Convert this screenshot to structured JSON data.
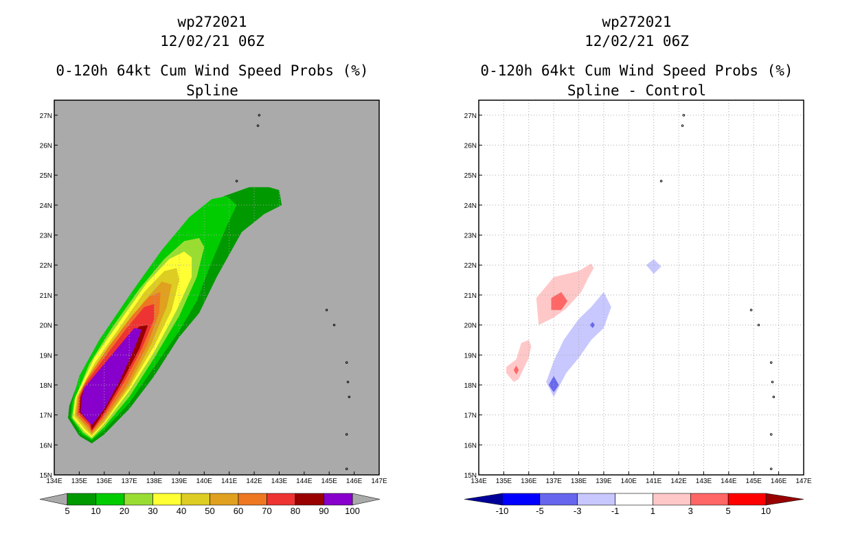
{
  "chart_data": [
    {
      "type": "contour",
      "title_lines": [
        "wp272021",
        "12/02/21 06Z",
        "0-120h 64kt Cum Wind Speed Probs (%)",
        "Spline"
      ],
      "x_ticks": [
        "134E",
        "135E",
        "136E",
        "137E",
        "138E",
        "139E",
        "140E",
        "141E",
        "142E",
        "143E",
        "144E",
        "145E",
        "146E",
        "147E"
      ],
      "y_ticks": [
        "15N",
        "16N",
        "17N",
        "18N",
        "19N",
        "20N",
        "21N",
        "22N",
        "23N",
        "24N",
        "25N",
        "26N",
        "27N"
      ],
      "xlim": [
        134,
        147
      ],
      "ylim": [
        15,
        27.5
      ],
      "background_color": "#aaaaaa",
      "grid": true,
      "legend": {
        "colors": [
          "#009900",
          "#00cc00",
          "#99dd33",
          "#ffff33",
          "#ddcc22",
          "#e0a020",
          "#ee7722",
          "#ee3333",
          "#990000",
          "#8800cc"
        ],
        "labels": [
          "5",
          "10",
          "20",
          "30",
          "40",
          "50",
          "60",
          "70",
          "80",
          "90",
          "100"
        ]
      },
      "contours": [
        {
          "level": 5,
          "color": "#009900",
          "points": [
            [
              134.55,
              16.9
            ],
            [
              135.0,
              16.3
            ],
            [
              135.5,
              16.05
            ],
            [
              136.0,
              16.35
            ],
            [
              137.0,
              17.2
            ],
            [
              138.0,
              18.3
            ],
            [
              139.0,
              19.6
            ],
            [
              139.8,
              20.4
            ],
            [
              140.5,
              21.6
            ],
            [
              141.5,
              23.1
            ],
            [
              142.4,
              23.7
            ],
            [
              143.1,
              24.0
            ],
            [
              143.0,
              24.5
            ],
            [
              142.6,
              24.6
            ],
            [
              141.8,
              24.6
            ],
            [
              140.8,
              24.3
            ],
            [
              139.8,
              23.7
            ],
            [
              138.5,
              22.5
            ],
            [
              137.2,
              21.1
            ],
            [
              135.8,
              19.4
            ],
            [
              135.0,
              18.2
            ],
            [
              134.6,
              17.3
            ]
          ]
        },
        {
          "level": 10,
          "color": "#00cc00",
          "points": [
            [
              134.65,
              16.9
            ],
            [
              135.1,
              16.35
            ],
            [
              135.5,
              16.15
            ],
            [
              136.0,
              16.5
            ],
            [
              137.0,
              17.4
            ],
            [
              138.0,
              18.6
            ],
            [
              139.0,
              19.8
            ],
            [
              139.7,
              20.8
            ],
            [
              140.2,
              21.9
            ],
            [
              140.9,
              23.3
            ],
            [
              141.3,
              24.0
            ],
            [
              140.9,
              24.3
            ],
            [
              140.3,
              24.2
            ],
            [
              139.4,
              23.6
            ],
            [
              138.3,
              22.5
            ],
            [
              137.1,
              21.1
            ],
            [
              135.8,
              19.5
            ],
            [
              135.0,
              18.3
            ],
            [
              134.7,
              17.4
            ]
          ]
        },
        {
          "level": 20,
          "color": "#99dd33",
          "points": [
            [
              134.7,
              16.9
            ],
            [
              135.15,
              16.4
            ],
            [
              135.5,
              16.2
            ],
            [
              136.0,
              16.6
            ],
            [
              137.0,
              17.6
            ],
            [
              138.0,
              18.9
            ],
            [
              139.0,
              20.3
            ],
            [
              139.7,
              21.6
            ],
            [
              140.0,
              22.6
            ],
            [
              139.8,
              22.9
            ],
            [
              139.2,
              22.8
            ],
            [
              138.4,
              22.2
            ],
            [
              137.4,
              21.2
            ],
            [
              136.3,
              19.9
            ],
            [
              135.4,
              18.7
            ],
            [
              134.8,
              17.5
            ]
          ]
        },
        {
          "level": 30,
          "color": "#ffff33",
          "points": [
            [
              134.75,
              16.9
            ],
            [
              135.2,
              16.45
            ],
            [
              135.5,
              16.25
            ],
            [
              136.0,
              16.7
            ],
            [
              137.0,
              17.8
            ],
            [
              138.0,
              19.1
            ],
            [
              138.9,
              20.5
            ],
            [
              139.5,
              21.6
            ],
            [
              139.5,
              22.25
            ],
            [
              139.2,
              22.45
            ],
            [
              138.6,
              22.2
            ],
            [
              137.7,
              21.4
            ],
            [
              136.6,
              20.1
            ],
            [
              135.6,
              18.9
            ],
            [
              134.85,
              17.6
            ]
          ]
        },
        {
          "level": 40,
          "color": "#ddcc22",
          "points": [
            [
              134.8,
              16.95
            ],
            [
              135.25,
              16.5
            ],
            [
              135.5,
              16.3
            ],
            [
              136.0,
              16.75
            ],
            [
              137.0,
              17.9
            ],
            [
              138.0,
              19.3
            ],
            [
              138.7,
              20.5
            ],
            [
              139.0,
              21.5
            ],
            [
              138.9,
              21.9
            ],
            [
              138.4,
              21.8
            ],
            [
              137.6,
              21.1
            ],
            [
              136.6,
              19.9
            ],
            [
              135.6,
              18.7
            ],
            [
              134.9,
              17.6
            ]
          ]
        },
        {
          "level": 50,
          "color": "#e0a020",
          "points": [
            [
              134.85,
              17.0
            ],
            [
              135.3,
              16.55
            ],
            [
              135.5,
              16.35
            ],
            [
              136.0,
              16.8
            ],
            [
              137.0,
              18.0
            ],
            [
              137.9,
              19.4
            ],
            [
              138.5,
              20.6
            ],
            [
              138.7,
              21.35
            ],
            [
              138.3,
              21.45
            ],
            [
              137.6,
              20.8
            ],
            [
              136.7,
              19.8
            ],
            [
              135.7,
              18.6
            ],
            [
              134.95,
              17.6
            ]
          ]
        },
        {
          "level": 60,
          "color": "#ee7722",
          "points": [
            [
              134.9,
              17.0
            ],
            [
              135.35,
              16.6
            ],
            [
              135.5,
              16.4
            ],
            [
              136.0,
              16.9
            ],
            [
              136.9,
              18.0
            ],
            [
              137.7,
              19.3
            ],
            [
              138.2,
              20.4
            ],
            [
              138.25,
              21.1
            ],
            [
              137.8,
              20.95
            ],
            [
              137.1,
              20.3
            ],
            [
              136.2,
              19.3
            ],
            [
              135.3,
              18.2
            ],
            [
              134.95,
              17.6
            ]
          ]
        },
        {
          "level": 70,
          "color": "#ee3333",
          "points": [
            [
              134.95,
              17.05
            ],
            [
              135.4,
              16.65
            ],
            [
              135.5,
              16.45
            ],
            [
              136.0,
              17.0
            ],
            [
              136.8,
              18.1
            ],
            [
              137.5,
              19.2
            ],
            [
              138.0,
              20.2
            ],
            [
              138.0,
              20.7
            ],
            [
              137.6,
              20.6
            ],
            [
              136.9,
              19.9
            ],
            [
              136.0,
              18.9
            ],
            [
              135.2,
              18.0
            ],
            [
              135.0,
              17.6
            ]
          ]
        },
        {
          "level": 80,
          "color": "#990000",
          "points": [
            [
              135.0,
              17.1
            ],
            [
              135.45,
              16.7
            ],
            [
              135.5,
              16.5
            ],
            [
              136.0,
              17.1
            ],
            [
              136.7,
              18.1
            ],
            [
              137.4,
              19.2
            ],
            [
              137.75,
              20.0
            ],
            [
              137.4,
              19.95
            ],
            [
              136.8,
              19.5
            ],
            [
              135.9,
              18.6
            ],
            [
              135.2,
              17.9
            ],
            [
              135.05,
              17.6
            ]
          ]
        },
        {
          "level": 90,
          "color": "#8800cc",
          "points": [
            [
              135.05,
              17.1
            ],
            [
              135.5,
              16.65
            ],
            [
              136.0,
              17.2
            ],
            [
              136.6,
              18.1
            ],
            [
              137.2,
              19.2
            ],
            [
              137.5,
              19.85
            ],
            [
              137.2,
              19.9
            ],
            [
              136.6,
              19.3
            ],
            [
              135.8,
              18.5
            ],
            [
              135.2,
              17.9
            ],
            [
              135.1,
              17.6
            ]
          ]
        }
      ],
      "islands": [
        [
          142.2,
          27.0
        ],
        [
          142.15,
          26.65
        ],
        [
          141.3,
          24.8
        ],
        [
          144.9,
          20.5
        ],
        [
          145.2,
          20.0
        ],
        [
          145.7,
          18.75
        ],
        [
          145.75,
          18.1
        ],
        [
          145.8,
          17.6
        ],
        [
          145.7,
          16.35
        ],
        [
          145.7,
          15.2
        ]
      ]
    },
    {
      "type": "contour",
      "title_lines": [
        "wp272021",
        "12/02/21 06Z",
        "0-120h 64kt Cum Wind Speed Probs (%)",
        "Spline - Control"
      ],
      "x_ticks": [
        "134E",
        "135E",
        "136E",
        "137E",
        "138E",
        "139E",
        "140E",
        "141E",
        "142E",
        "143E",
        "144E",
        "145E",
        "146E",
        "147E"
      ],
      "y_ticks": [
        "15N",
        "16N",
        "17N",
        "18N",
        "19N",
        "20N",
        "21N",
        "22N",
        "23N",
        "24N",
        "25N",
        "26N",
        "27N"
      ],
      "xlim": [
        134,
        147
      ],
      "ylim": [
        15,
        27.5
      ],
      "background_color": "#ffffff",
      "grid": true,
      "legend": {
        "colors": [
          "#000099",
          "#0000ff",
          "#6666ee",
          "#c8c8ff",
          "#ffffff",
          "#ffc8c8",
          "#ff6666",
          "#ff0000",
          "#990000"
        ],
        "labels": [
          "-10",
          "-5",
          "-3",
          "-1",
          "1",
          "3",
          "5",
          "10"
        ]
      },
      "contours": [
        {
          "level": 1,
          "color": "#ffc8c8",
          "points": [
            [
              136.4,
              20.0
            ],
            [
              136.3,
              20.9
            ],
            [
              137.0,
              21.6
            ],
            [
              138.0,
              21.8
            ],
            [
              138.5,
              22.05
            ],
            [
              138.6,
              21.9
            ],
            [
              138.4,
              21.6
            ],
            [
              138.1,
              21.1
            ],
            [
              137.5,
              20.55
            ],
            [
              137.0,
              20.25
            ]
          ]
        },
        {
          "level": 3,
          "color": "#ff6666",
          "points": [
            [
              136.9,
              20.5
            ],
            [
              136.9,
              20.9
            ],
            [
              137.3,
              21.1
            ],
            [
              137.55,
              20.8
            ],
            [
              137.3,
              20.5
            ]
          ]
        },
        {
          "level": 1,
          "color": "#ffc8c8",
          "points": [
            [
              135.1,
              18.4
            ],
            [
              135.1,
              18.6
            ],
            [
              135.5,
              18.85
            ],
            [
              135.7,
              19.4
            ],
            [
              136.0,
              19.5
            ],
            [
              136.1,
              19.3
            ],
            [
              136.0,
              18.9
            ],
            [
              135.6,
              18.2
            ],
            [
              135.4,
              18.1
            ]
          ]
        },
        {
          "level": 3,
          "color": "#ff6666",
          "points": [
            [
              135.4,
              18.5
            ],
            [
              135.5,
              18.65
            ],
            [
              135.6,
              18.5
            ],
            [
              135.5,
              18.35
            ]
          ]
        },
        {
          "level": -1,
          "color": "#c8c8ff",
          "points": [
            [
              136.7,
              18.1
            ],
            [
              137.0,
              17.6
            ],
            [
              137.5,
              18.4
            ],
            [
              138.0,
              18.9
            ],
            [
              138.5,
              19.5
            ],
            [
              139.0,
              19.9
            ],
            [
              139.3,
              20.6
            ],
            [
              139.0,
              21.1
            ],
            [
              138.5,
              20.6
            ],
            [
              138.0,
              20.2
            ],
            [
              137.4,
              19.5
            ],
            [
              137.0,
              18.8
            ]
          ]
        },
        {
          "level": -3,
          "color": "#6666ee",
          "points": [
            [
              136.8,
              18.0
            ],
            [
              137.0,
              17.75
            ],
            [
              137.2,
              18.0
            ],
            [
              137.0,
              18.3
            ]
          ]
        },
        {
          "level": -3,
          "color": "#6666ee",
          "points": [
            [
              138.45,
              20.0
            ],
            [
              138.55,
              19.9
            ],
            [
              138.65,
              20.0
            ],
            [
              138.55,
              20.1
            ]
          ]
        },
        {
          "level": -1,
          "color": "#c8c8ff",
          "points": [
            [
              140.7,
              22.0
            ],
            [
              141.0,
              21.7
            ],
            [
              141.3,
              21.95
            ],
            [
              141.0,
              22.2
            ]
          ]
        }
      ],
      "islands": [
        [
          142.2,
          27.0
        ],
        [
          142.15,
          26.65
        ],
        [
          141.3,
          24.8
        ],
        [
          144.9,
          20.5
        ],
        [
          145.2,
          20.0
        ],
        [
          145.7,
          18.75
        ],
        [
          145.75,
          18.1
        ],
        [
          145.8,
          17.6
        ],
        [
          145.7,
          16.35
        ],
        [
          145.7,
          15.2
        ]
      ]
    }
  ]
}
